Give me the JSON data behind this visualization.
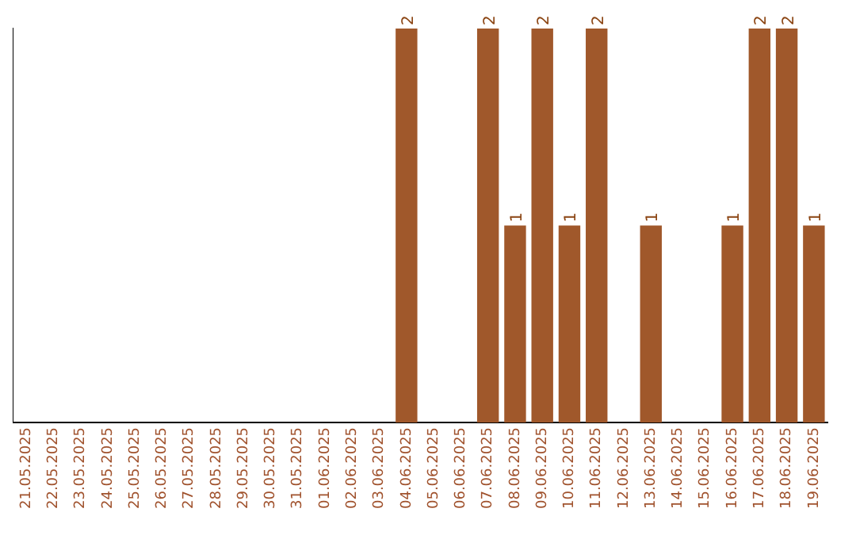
{
  "chart_data": {
    "type": "bar",
    "categories": [
      "21.05.2025",
      "22.05.2025",
      "23.05.2025",
      "24.05.2025",
      "25.05.2025",
      "26.05.2025",
      "27.05.2025",
      "28.05.2025",
      "29.05.2025",
      "30.05.2025",
      "31.05.2025",
      "01.06.2025",
      "02.06.2025",
      "03.06.2025",
      "04.06.2025",
      "05.06.2025",
      "06.06.2025",
      "07.06.2025",
      "08.06.2025",
      "09.06.2025",
      "10.06.2025",
      "11.06.2025",
      "12.06.2025",
      "13.06.2025",
      "14.06.2025",
      "15.06.2025",
      "16.06.2025",
      "17.06.2025",
      "18.06.2025",
      "19.06.2025"
    ],
    "values": [
      null,
      null,
      null,
      null,
      null,
      null,
      null,
      null,
      null,
      null,
      null,
      null,
      null,
      null,
      2,
      null,
      null,
      2,
      1,
      2,
      1,
      2,
      null,
      1,
      null,
      null,
      1,
      2,
      2,
      1
    ],
    "color": "#a0582b",
    "data_labels": true,
    "grid": false,
    "legend": false,
    "tick_labels": "x"
  }
}
